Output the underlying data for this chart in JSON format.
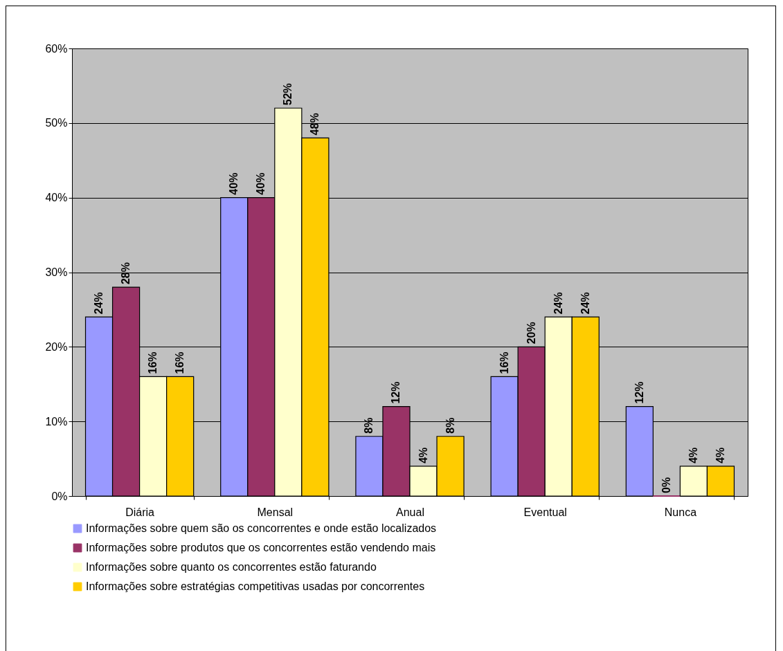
{
  "chart_data": {
    "type": "bar",
    "categories": [
      "Diária",
      "Mensal",
      "Anual",
      "Eventual",
      "Nunca"
    ],
    "series": [
      {
        "name": "Informações sobre quem são os concorrentes e onde estão localizados",
        "color": "#9999ff",
        "values": [
          24,
          40,
          8,
          16,
          12
        ],
        "value_labels": [
          "24%",
          "40%",
          "8%",
          "16%",
          "12%"
        ]
      },
      {
        "name": "Informações sobre produtos que os concorrentes estão vendendo mais",
        "color": "#993366",
        "values": [
          28,
          40,
          12,
          20,
          0
        ],
        "value_labels": [
          "28%",
          "40%",
          "12%",
          "20%",
          "0%"
        ]
      },
      {
        "name": "Informações sobre quanto os concorrentes estão faturando",
        "color": "#ffffcc",
        "values": [
          16,
          52,
          4,
          24,
          4
        ],
        "value_labels": [
          "16%",
          "52%",
          "4%",
          "24%",
          "4%"
        ]
      },
      {
        "name": "Informações sobre estratégias competitivas usadas por concorrentes",
        "color": "#ffcc00",
        "values": [
          16,
          48,
          8,
          24,
          4
        ],
        "value_labels": [
          "16%",
          "48%",
          "8%",
          "24%",
          "4%"
        ]
      }
    ],
    "ylim": [
      0,
      60
    ],
    "yticks": [
      {
        "value": 0,
        "label": "0%"
      },
      {
        "value": 10,
        "label": "10%"
      },
      {
        "value": 20,
        "label": "20%"
      },
      {
        "value": 30,
        "label": "30%"
      },
      {
        "value": 40,
        "label": "40%"
      },
      {
        "value": 50,
        "label": "50%"
      },
      {
        "value": 60,
        "label": "60%"
      }
    ],
    "grid": "y",
    "legend": "bottom"
  }
}
